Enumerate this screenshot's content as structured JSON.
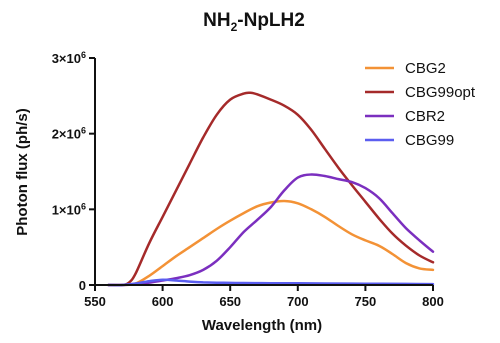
{
  "chart_data": {
    "type": "line",
    "title": "NH2-NpLH2",
    "title_parts": {
      "base": "NH",
      "sub": "2",
      "rest": "-NpLH2"
    },
    "xlabel": "Wavelength (nm)",
    "ylabel": "Photon flux (ph/s)",
    "xlim": [
      550,
      800
    ],
    "ylim": [
      0,
      3000000
    ],
    "xticks": [
      550,
      600,
      650,
      700,
      750,
      800
    ],
    "xtick_labels": [
      "550",
      "600",
      "650",
      "700",
      "750",
      "800"
    ],
    "yticks": [
      0,
      1000000,
      2000000,
      3000000
    ],
    "ytick_labels": [
      {
        "text": "0",
        "coef": "",
        "exp": ""
      },
      {
        "text": "",
        "coef": "1×10",
        "exp": "6"
      },
      {
        "text": "",
        "coef": "2×10",
        "exp": "6"
      },
      {
        "text": "",
        "coef": "3×10",
        "exp": "6"
      }
    ],
    "grid": false,
    "legend_position": "top-right",
    "series": [
      {
        "name": "CBG2",
        "color": "#f39236",
        "x": [
          560,
          570,
          580,
          590,
          600,
          610,
          620,
          630,
          640,
          650,
          660,
          670,
          680,
          690,
          700,
          710,
          720,
          730,
          740,
          750,
          760,
          770,
          780,
          790,
          800
        ],
        "y": [
          0,
          0,
          20000,
          120000,
          250000,
          380000,
          500000,
          620000,
          740000,
          850000,
          950000,
          1040000,
          1090000,
          1110000,
          1080000,
          1000000,
          900000,
          780000,
          670000,
          590000,
          520000,
          410000,
          290000,
          220000,
          200000
        ]
      },
      {
        "name": "CBG99opt",
        "color": "#a52a2a",
        "x": [
          560,
          570,
          575,
          580,
          590,
          600,
          610,
          620,
          630,
          640,
          650,
          660,
          665,
          670,
          680,
          690,
          700,
          710,
          720,
          730,
          740,
          750,
          760,
          770,
          780,
          790,
          800
        ],
        "y": [
          0,
          0,
          30000,
          150000,
          550000,
          900000,
          1250000,
          1600000,
          1950000,
          2250000,
          2450000,
          2530000,
          2540000,
          2520000,
          2450000,
          2370000,
          2250000,
          2050000,
          1800000,
          1550000,
          1320000,
          1100000,
          880000,
          680000,
          520000,
          390000,
          300000
        ]
      },
      {
        "name": "CBR2",
        "color": "#7b2fbf",
        "x": [
          560,
          570,
          580,
          590,
          600,
          610,
          620,
          630,
          640,
          650,
          660,
          670,
          680,
          690,
          700,
          710,
          720,
          730,
          740,
          750,
          760,
          770,
          780,
          790,
          800
        ],
        "y": [
          0,
          0,
          10000,
          30000,
          60000,
          90000,
          130000,
          200000,
          320000,
          500000,
          700000,
          860000,
          1030000,
          1250000,
          1420000,
          1460000,
          1440000,
          1400000,
          1360000,
          1280000,
          1150000,
          950000,
          750000,
          590000,
          440000
        ]
      },
      {
        "name": "CBG99",
        "color": "#5b5ef0",
        "x": [
          560,
          570,
          580,
          590,
          600,
          610,
          620,
          630,
          640,
          650,
          660,
          680,
          700,
          720,
          740,
          760,
          780,
          800
        ],
        "y": [
          0,
          0,
          20000,
          50000,
          70000,
          60000,
          45000,
          35000,
          30000,
          28000,
          26000,
          24000,
          22000,
          20000,
          18000,
          16000,
          14000,
          12000
        ]
      }
    ]
  }
}
